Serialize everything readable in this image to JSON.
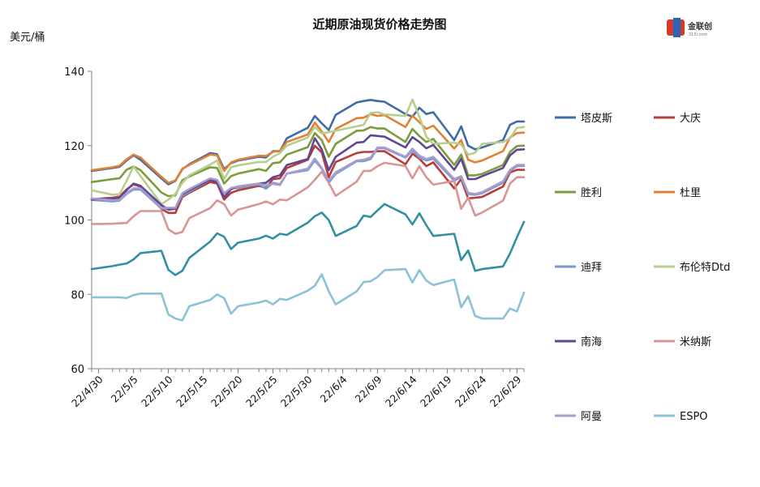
{
  "logo": {
    "text": "金联创",
    "sub": "315i.com"
  },
  "chart_data": {
    "type": "line",
    "title": "近期原油现货价格走势图",
    "ylabel": "美元/桶",
    "xlabel": "",
    "ylim": [
      60,
      140
    ],
    "yticks": [
      60,
      80,
      100,
      120,
      140
    ],
    "xtick_labels": [
      "22/4/30",
      "22/5/5",
      "22/5/10",
      "22/5/15",
      "22/5/20",
      "22/5/25",
      "22/5/30",
      "22/6/4",
      "22/6/9",
      "22/6/14",
      "22/6/19",
      "22/6/24",
      "22/6/29"
    ],
    "x": [
      "22/4/29",
      "22/5/2",
      "22/5/3",
      "22/5/4",
      "22/5/5",
      "22/5/6",
      "22/5/9",
      "22/5/10",
      "22/5/11",
      "22/5/12",
      "22/5/13",
      "22/5/16",
      "22/5/17",
      "22/5/18",
      "22/5/19",
      "22/5/20",
      "22/5/23",
      "22/5/24",
      "22/5/25",
      "22/5/26",
      "22/5/27",
      "22/5/30",
      "22/5/31",
      "22/6/1",
      "22/6/2",
      "22/6/3",
      "22/6/6",
      "22/6/7",
      "22/6/8",
      "22/6/9",
      "22/6/10",
      "22/6/13",
      "22/6/14",
      "22/6/15",
      "22/6/16",
      "22/6/17",
      "22/6/20",
      "22/6/21",
      "22/6/22",
      "22/6/23",
      "22/6/24",
      "22/6/27",
      "22/6/28",
      "22/6/29",
      "22/6/30"
    ],
    "legend_position": "right",
    "grid": false,
    "series": [
      {
        "name": "塔皮斯",
        "color": "#3F6CA8",
        "values": [
          113.2,
          114.0,
          114.3,
          116.0,
          117.4,
          116.2,
          111.2,
          109.6,
          110.5,
          113.7,
          115.0,
          118.0,
          117.7,
          113.7,
          115.3,
          116.0,
          117.0,
          116.8,
          118.5,
          118.5,
          122.0,
          124.8,
          128.0,
          126.0,
          124.2,
          128.3,
          131.6,
          132.0,
          132.3,
          132.0,
          131.8,
          128.5,
          127.8,
          130.2,
          128.5,
          129.0,
          121.5,
          125.2,
          120.0,
          119.0,
          119.5,
          121.5,
          125.6,
          126.5,
          126.5
        ]
      },
      {
        "name": "大庆",
        "color": "#B83C3A",
        "values": [
          105.6,
          106.0,
          106.3,
          108.2,
          109.6,
          109.0,
          103.0,
          101.9,
          101.9,
          106.2,
          107.3,
          110.2,
          109.8,
          105.5,
          107.3,
          108.0,
          109.2,
          108.6,
          111.0,
          111.2,
          114.0,
          116.2,
          120.0,
          118.2,
          111.5,
          115.6,
          118.0,
          118.3,
          118.3,
          118.5,
          118.5,
          115.0,
          117.8,
          116.5,
          114.5,
          115.5,
          108.5,
          111.0,
          105.8,
          106.0,
          106.2,
          109.0,
          112.8,
          113.5,
          113.5
        ]
      },
      {
        "name": "胜利",
        "color": "#7C9C3E",
        "values": [
          110.2,
          111.0,
          111.2,
          113.5,
          114.4,
          113.4,
          107.4,
          106.4,
          106.6,
          110.7,
          111.7,
          114.2,
          114.0,
          109.8,
          111.8,
          112.5,
          113.7,
          113.2,
          115.3,
          115.5,
          117.6,
          119.6,
          123.4,
          121.5,
          117.0,
          120.5,
          124.0,
          124.1,
          125.0,
          124.6,
          124.6,
          121.0,
          124.5,
          122.6,
          121.0,
          121.8,
          114.8,
          117.6,
          112.0,
          112.0,
          112.4,
          114.8,
          118.3,
          119.9,
          120.0
        ]
      },
      {
        "name": "杜里",
        "color": "#E08135",
        "values": [
          113.4,
          114.2,
          114.6,
          116.3,
          117.6,
          116.8,
          111.6,
          110.0,
          110.6,
          113.8,
          114.8,
          117.6,
          117.4,
          113.2,
          115.5,
          116.2,
          117.3,
          117.2,
          118.3,
          118.6,
          121.0,
          123.0,
          126.2,
          123.8,
          121.0,
          124.5,
          127.4,
          127.5,
          128.5,
          128.0,
          128.2,
          125.0,
          128.1,
          126.3,
          124.5,
          125.4,
          119.2,
          121.5,
          116.2,
          115.5,
          116.0,
          118.5,
          122.2,
          123.4,
          123.5
        ]
      },
      {
        "name": "迪拜",
        "color": "#7A9CCB",
        "values": [
          105.4,
          105.0,
          105.2,
          107.0,
          108.2,
          108.2,
          103.1,
          103.0,
          103.0,
          106.5,
          107.6,
          110.8,
          110.5,
          106.8,
          108.5,
          108.6,
          109.6,
          108.4,
          110.0,
          109.6,
          112.5,
          113.4,
          116.0,
          113.8,
          110.0,
          112.4,
          115.8,
          115.8,
          116.4,
          119.3,
          119.3,
          116.8,
          118.7,
          116.8,
          116.0,
          116.5,
          110.6,
          111.5,
          107.0,
          106.8,
          107.2,
          110.0,
          113.2,
          114.5,
          114.5
        ]
      },
      {
        "name": "布伦特Dtd",
        "color": "#B7CF8C",
        "values": [
          108.0,
          106.8,
          106.9,
          110.5,
          114.4,
          111.8,
          104.3,
          105.5,
          107.0,
          110.0,
          112.0,
          114.9,
          116.0,
          111.0,
          114.2,
          114.7,
          115.6,
          115.6,
          117.0,
          118.0,
          120.0,
          122.2,
          125.0,
          123.3,
          123.6,
          124.0,
          125.2,
          125.6,
          128.8,
          129.0,
          128.4,
          128.0,
          132.4,
          127.8,
          122.4,
          120.5,
          120.8,
          120.3,
          117.6,
          118.1,
          120.5,
          121.0,
          122.0,
          124.8,
          125.0
        ]
      },
      {
        "name": "南海",
        "color": "#5F4891",
        "values": [
          105.5,
          105.8,
          105.8,
          108.0,
          109.8,
          109.2,
          104.0,
          102.8,
          103.0,
          106.9,
          108.0,
          110.8,
          110.2,
          106.0,
          108.3,
          109.0,
          109.8,
          110.0,
          111.5,
          112.0,
          114.8,
          116.4,
          122.0,
          119.0,
          113.4,
          117.0,
          120.8,
          121.0,
          122.8,
          122.6,
          122.4,
          119.5,
          122.3,
          121.0,
          119.3,
          120.2,
          113.5,
          116.5,
          111.0,
          111.0,
          111.8,
          114.0,
          117.4,
          118.9,
          119.0
        ]
      },
      {
        "name": "米纳斯",
        "color": "#D89593",
        "values": [
          98.9,
          99.0,
          99.1,
          99.2,
          101.0,
          102.4,
          102.4,
          97.5,
          96.3,
          96.8,
          100.5,
          103.2,
          105.3,
          104.3,
          101.2,
          102.8,
          104.3,
          105.0,
          104.2,
          105.5,
          105.3,
          108.8,
          110.8,
          113.0,
          110.0,
          106.5,
          110.3,
          113.2,
          113.2,
          114.5,
          115.4,
          114.5,
          111.2,
          114.5,
          111.5,
          109.5,
          110.5,
          103.0,
          106.0,
          101.2,
          102.0,
          105.2,
          109.8,
          111.5,
          111.5
        ]
      },
      {
        "name": "阿曼",
        "color": "#A89BCD",
        "values": [
          105.8,
          105.3,
          105.4,
          107.2,
          108.5,
          108.5,
          103.2,
          103.3,
          103.3,
          107.2,
          108.3,
          111.2,
          110.8,
          107.2,
          108.6,
          109.0,
          109.8,
          109.3,
          109.7,
          109.4,
          112.5,
          113.8,
          116.5,
          114.0,
          110.6,
          112.8,
          116.0,
          116.2,
          116.8,
          119.5,
          119.5,
          117.0,
          119.2,
          117.3,
          116.4,
          117.0,
          111.0,
          111.8,
          107.3,
          107.0,
          107.5,
          110.4,
          113.5,
          114.8,
          114.8
        ]
      },
      {
        "name": "ESPO",
        "color": "#8DC1D6",
        "values": [
          79.2,
          79.2,
          79.2,
          79.0,
          79.8,
          80.2,
          80.2,
          74.6,
          73.5,
          73.0,
          76.8,
          78.5,
          80.0,
          79.0,
          74.8,
          76.8,
          77.8,
          78.3,
          77.3,
          78.8,
          78.5,
          81.0,
          82.3,
          85.4,
          80.8,
          77.3,
          80.8,
          83.3,
          83.5,
          84.7,
          86.5,
          86.8,
          83.2,
          86.5,
          83.7,
          82.5,
          84.0,
          76.5,
          79.5,
          74.2,
          73.5,
          73.5,
          76.2,
          75.4,
          80.5
        ]
      },
      {
        "name": "",
        "color": "#3390A2",
        "values": [
          86.8,
          87.6,
          88.0,
          88.3,
          89.4,
          91.1,
          91.7,
          86.6,
          85.2,
          86.3,
          89.8,
          94.2,
          96.4,
          95.5,
          92.2,
          93.9,
          95.0,
          95.8,
          95.0,
          96.3,
          96.0,
          99.3,
          101.0,
          102.0,
          100.0,
          95.7,
          98.4,
          101.2,
          100.8,
          102.6,
          104.3,
          101.5,
          98.8,
          101.8,
          98.6,
          95.7,
          96.3,
          89.2,
          91.8,
          86.3,
          86.8,
          87.5,
          91.0,
          95.4,
          99.5
        ]
      }
    ]
  }
}
